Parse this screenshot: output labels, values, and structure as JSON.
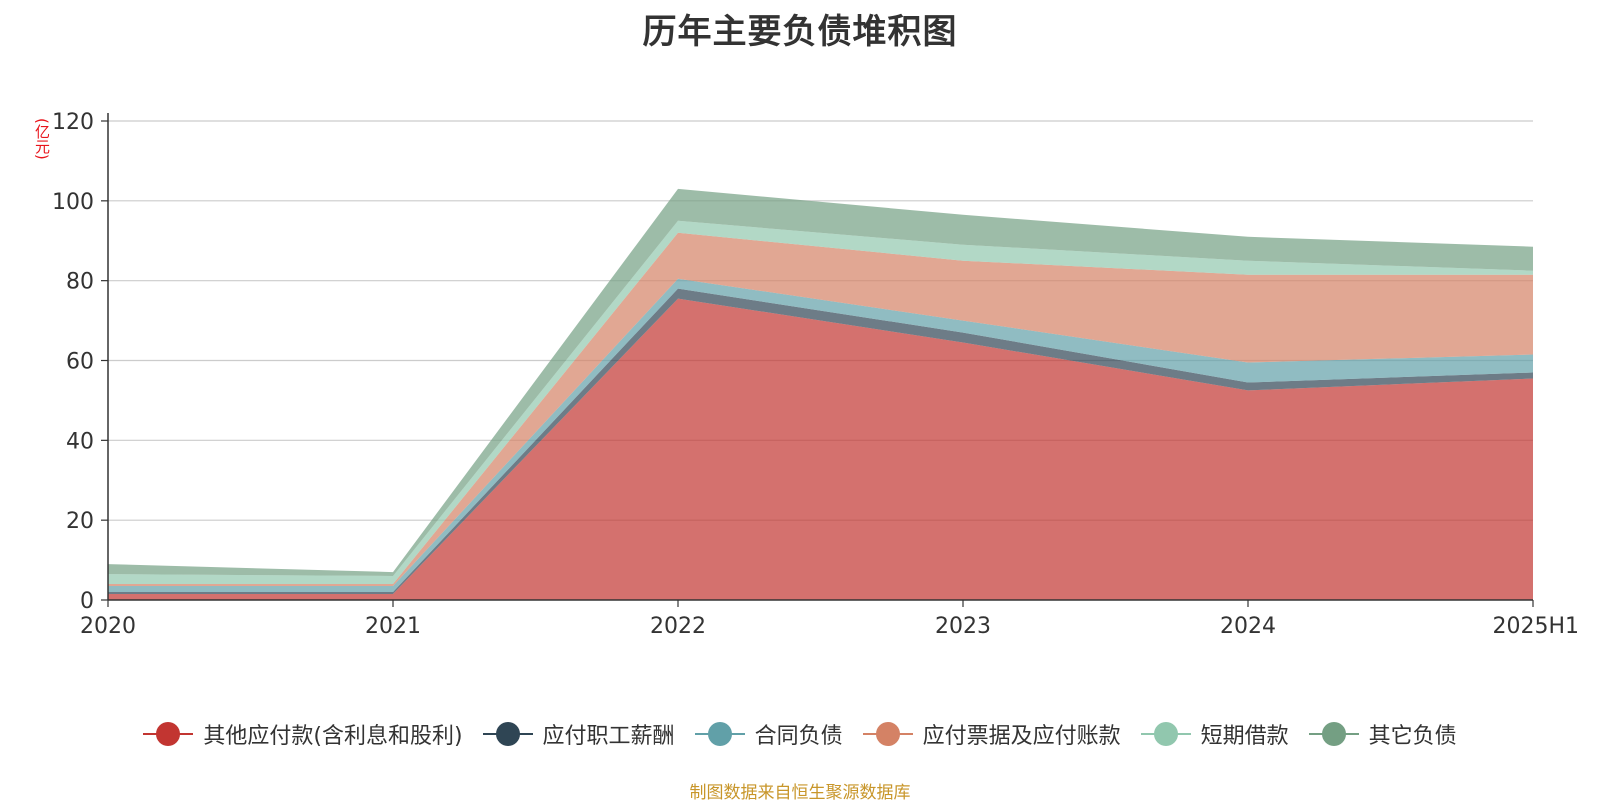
{
  "chart_data": {
    "type": "area",
    "stacked": true,
    "title": "历年主要负债堆积图",
    "unit_label": "(亿元)",
    "categories": [
      "2020",
      "2021",
      "2022",
      "2023",
      "2024",
      "2025H1"
    ],
    "ylim": [
      0,
      120
    ],
    "yticks": [
      0,
      20,
      40,
      60,
      80,
      100,
      120
    ],
    "grid": true,
    "legend_position": "bottom",
    "series": [
      {
        "name": "其他应付款(含利息和股利)",
        "color": "#c23531",
        "values": [
          1.5,
          1.5,
          75.5,
          64.5,
          52.5,
          55.5
        ]
      },
      {
        "name": "应付职工薪酬",
        "color": "#2f4554",
        "values": [
          0.5,
          0.5,
          2.5,
          2.5,
          2.0,
          1.5
        ]
      },
      {
        "name": "合同负债",
        "color": "#61a0a8",
        "values": [
          1.5,
          1.5,
          2.5,
          3.0,
          5.0,
          4.5
        ]
      },
      {
        "name": "应付票据及应付账款",
        "color": "#d48265",
        "values": [
          0.5,
          0.5,
          11.5,
          15.0,
          22.0,
          20.0
        ]
      },
      {
        "name": "短期借款",
        "color": "#91c7ae",
        "values": [
          2.5,
          2.0,
          3.0,
          4.0,
          3.5,
          1.0
        ]
      },
      {
        "name": "其它负债",
        "color": "#749f83",
        "values": [
          2.5,
          1.0,
          8.0,
          7.5,
          6.0,
          6.0
        ]
      }
    ]
  },
  "source_note": "制图数据来自恒生聚源数据库"
}
